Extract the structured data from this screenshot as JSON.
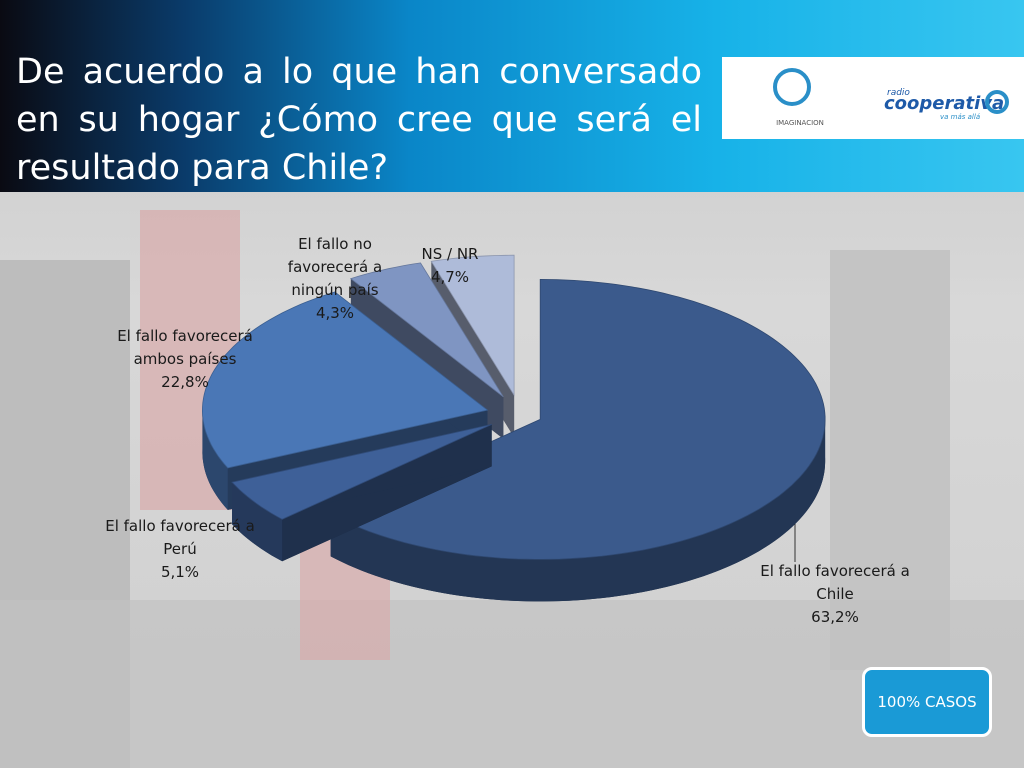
{
  "chart_data": {
    "type": "pie3d",
    "title": "De acuerdo a lo que han conversado en su hogar ¿Cómo cree que será el resultado para Chile?",
    "categories": [
      "El fallo favorecerá a Chile",
      "El fallo favorecerá a Perú",
      "El fallo favorecerá ambos países",
      "El fallo no favorecerá a ningún país",
      "NS / NR"
    ],
    "values": [
      63.2,
      5.1,
      22.8,
      4.3,
      4.7
    ],
    "value_labels": [
      "63,2%",
      "5,1%",
      "22,8%",
      "4,3%",
      "4,7%"
    ],
    "colors": [
      "#3b5a8c",
      "#3e6098",
      "#4a77b6",
      "#7f95c2",
      "#aebbd9"
    ]
  },
  "logos": [
    "IMAGINACION",
    "radio",
    "cooperativa",
    "va más allá"
  ],
  "badge": "100% CASOS"
}
